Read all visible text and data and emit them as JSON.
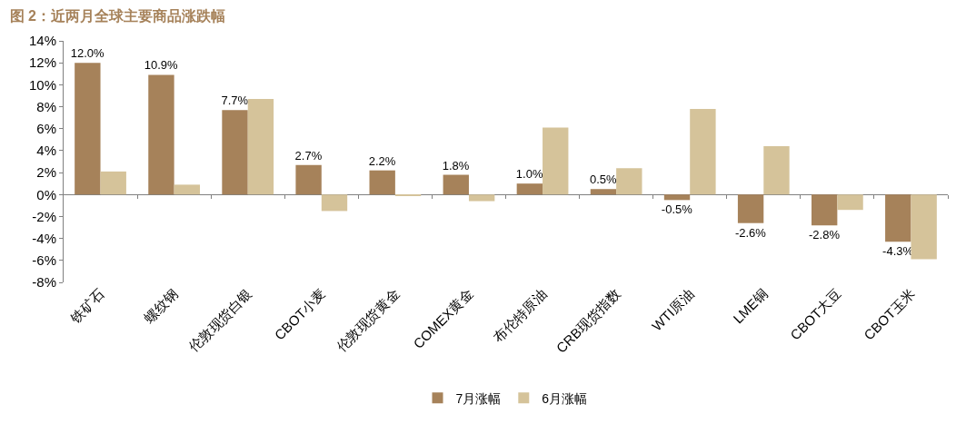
{
  "chart_data": {
    "type": "bar",
    "title": "图 2：近两月全球主要商品涨跌幅",
    "categories": [
      "铁矿石",
      "螺纹钢",
      "伦敦现货白银",
      "CBOT小麦",
      "伦敦现货黄金",
      "COMEX黄金",
      "布伦特原油",
      "CRB现货指数",
      "WTI原油",
      "LME铜",
      "CBOT大豆",
      "CBOT玉米"
    ],
    "series": [
      {
        "name": "7月涨幅",
        "color": "#a6825a",
        "values": [
          12.0,
          10.9,
          7.7,
          2.7,
          2.2,
          1.8,
          1.0,
          0.5,
          -0.5,
          -2.6,
          -2.8,
          -4.3
        ],
        "value_labels": [
          "12.0%",
          "10.9%",
          "7.7%",
          "2.7%",
          "2.2%",
          "1.8%",
          "1.0%",
          "0.5%",
          "-0.5%",
          "-2.6%",
          "-2.8%",
          "-4.3%"
        ]
      },
      {
        "name": "6月涨幅",
        "color": "#d5c39a",
        "values": [
          2.1,
          0.9,
          8.7,
          -1.5,
          -0.1,
          -0.6,
          6.1,
          2.4,
          7.8,
          4.4,
          -1.4,
          -5.9
        ]
      }
    ],
    "ylim": [
      -8,
      14
    ],
    "yticks": [
      {
        "value": 14,
        "label": "14%"
      },
      {
        "value": 12,
        "label": "12%"
      },
      {
        "value": 10,
        "label": "10%"
      },
      {
        "value": 8,
        "label": "8%"
      },
      {
        "value": 6,
        "label": "6%"
      },
      {
        "value": 4,
        "label": "4%"
      },
      {
        "value": 2,
        "label": "2%"
      },
      {
        "value": 0,
        "label": "0%"
      },
      {
        "value": -2,
        "label": "-2%"
      },
      {
        "value": -4,
        "label": "-4%"
      },
      {
        "value": -6,
        "label": "-6%"
      },
      {
        "value": -8,
        "label": "-8%"
      }
    ],
    "legend": "bottom"
  }
}
